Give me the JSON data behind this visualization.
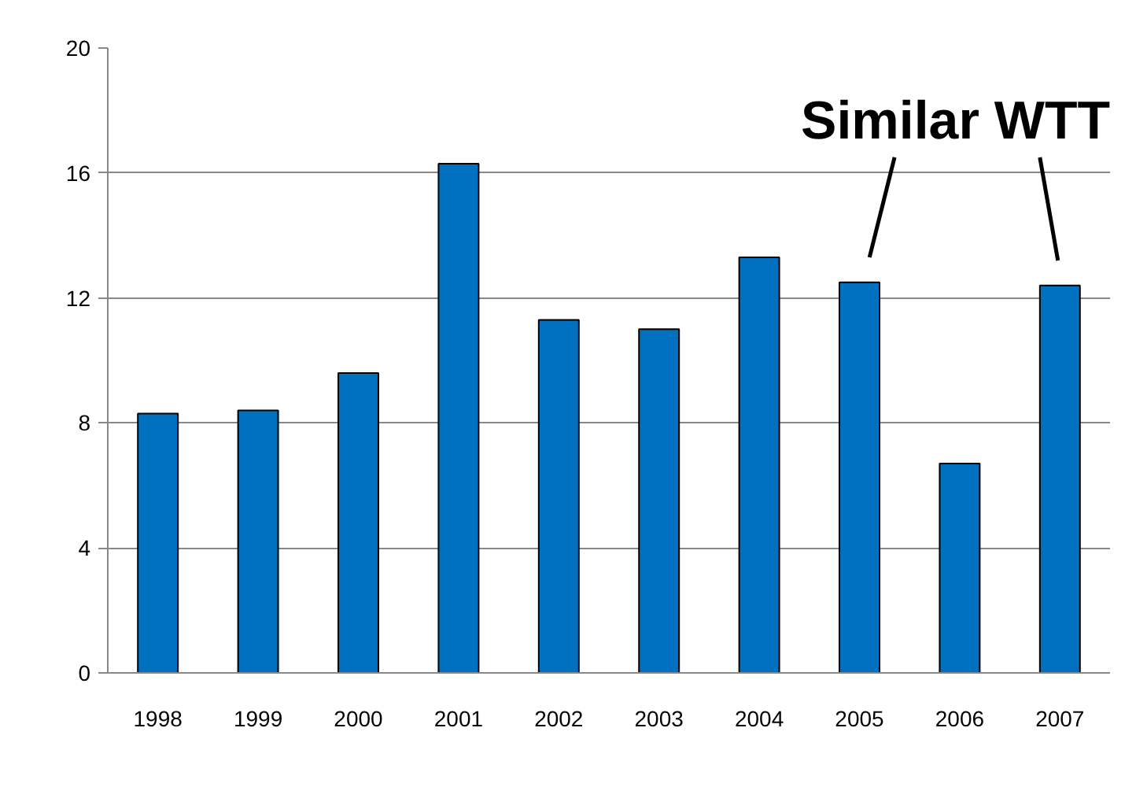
{
  "chart_data": {
    "type": "bar",
    "categories": [
      "1998",
      "1999",
      "2000",
      "2001",
      "2002",
      "2003",
      "2004",
      "2005",
      "2006",
      "2007"
    ],
    "values": [
      8.3,
      8.4,
      9.6,
      16.3,
      11.3,
      11.0,
      13.3,
      12.5,
      6.7,
      12.4
    ],
    "color": "#0070c0",
    "ylim": [
      0,
      20
    ],
    "yticks": [
      0,
      4,
      8,
      12,
      16,
      20
    ],
    "grid": "y",
    "annotations": [
      "Similar WTT"
    ]
  }
}
